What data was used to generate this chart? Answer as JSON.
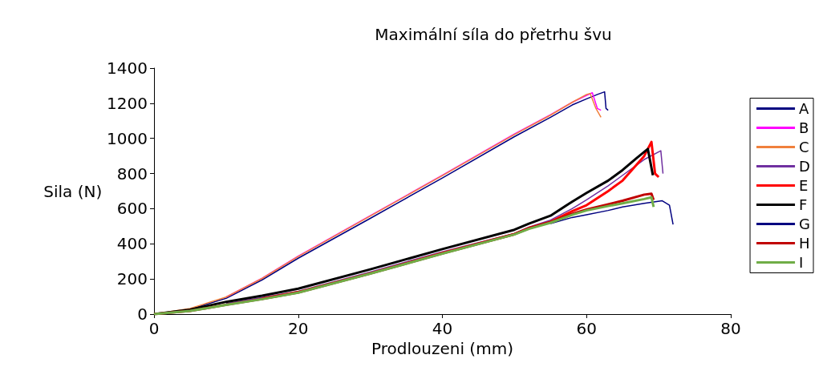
{
  "chart_data": {
    "type": "line",
    "title": "Maximální síla do přetrhu švu",
    "xlabel": "Prodlouzeni (mm)",
    "ylabel": "Sila (N)",
    "xlim": [
      0,
      80
    ],
    "xticks": [
      0,
      20,
      40,
      60,
      80
    ],
    "ylim": [
      0,
      1400
    ],
    "yticks": [
      0,
      200,
      400,
      600,
      800,
      1000,
      1200,
      1400
    ],
    "grid": false,
    "legend": "right",
    "marker": "none",
    "line_style": "solid",
    "series": [
      {
        "name": "A",
        "color": "#000080",
        "x": [
          0,
          5,
          10,
          15,
          20,
          30,
          40,
          50,
          55,
          58,
          60,
          61.5,
          62.5,
          62.7,
          63
        ],
        "values": [
          0,
          28,
          90,
          195,
          318,
          545,
          775,
          1010,
          1120,
          1190,
          1225,
          1250,
          1265,
          1170,
          1160
        ]
      },
      {
        "name": "B",
        "color": "#ff00ff",
        "x": [
          10,
          15,
          20,
          30,
          40,
          50,
          55,
          58,
          60,
          60.8,
          61.5,
          62
        ],
        "values": [
          97,
          205,
          330,
          560,
          790,
          1025,
          1135,
          1205,
          1245,
          1260,
          1170,
          1160
        ]
      },
      {
        "name": "C",
        "color": "#f0803c",
        "x": [
          0,
          5,
          10,
          15,
          20,
          30,
          40,
          50,
          55,
          58,
          60,
          60.5,
          61.3,
          62
        ],
        "values": [
          0,
          32,
          97,
          203,
          328,
          558,
          788,
          1022,
          1132,
          1205,
          1250,
          1255,
          1170,
          1120
        ]
      },
      {
        "name": "D",
        "color": "#7030a0",
        "x": [
          10,
          15,
          20,
          30,
          40,
          50,
          52,
          55,
          58,
          60,
          63,
          65,
          68,
          70.3,
          70.6
        ],
        "values": [
          60,
          95,
          130,
          240,
          355,
          460,
          495,
          535,
          600,
          650,
          730,
          790,
          880,
          930,
          800
        ]
      },
      {
        "name": "E",
        "color": "#ff0000",
        "x": [
          15,
          20,
          30,
          40,
          50,
          52,
          55,
          58,
          60,
          63,
          65,
          68,
          69,
          69.5,
          70
        ],
        "values": [
          88,
          125,
          232,
          348,
          455,
          490,
          525,
          585,
          620,
          700,
          760,
          900,
          980,
          800,
          780
        ]
      },
      {
        "name": "F",
        "color": "#000000",
        "x": [
          0,
          5,
          10,
          15,
          20,
          30,
          40,
          50,
          52,
          55,
          58,
          60,
          63,
          65,
          67,
          68.5,
          69.2
        ],
        "values": [
          0,
          25,
          70,
          105,
          145,
          255,
          370,
          480,
          515,
          560,
          640,
          690,
          760,
          820,
          890,
          940,
          790
        ]
      },
      {
        "name": "G",
        "color": "#000080",
        "x": [
          55,
          58,
          60,
          63,
          65,
          68,
          70.5,
          71.5,
          72
        ],
        "values": [
          515,
          550,
          565,
          590,
          610,
          630,
          645,
          620,
          510
        ]
      },
      {
        "name": "H",
        "color": "#c00000",
        "x": [
          0,
          5,
          10,
          15,
          20,
          30,
          40,
          50,
          52,
          55,
          58,
          60,
          63,
          65,
          68,
          69,
          69.3
        ],
        "values": [
          0,
          18,
          53,
          86,
          123,
          231,
          345,
          455,
          488,
          525,
          570,
          595,
          625,
          645,
          680,
          685,
          650
        ]
      },
      {
        "name": "I",
        "color": "#70ad47",
        "x": [
          0,
          5,
          10,
          15,
          20,
          30,
          40,
          50,
          52,
          55,
          58,
          60,
          63,
          65,
          68,
          69,
          69.3
        ],
        "values": [
          0,
          18,
          52,
          85,
          122,
          230,
          344,
          453,
          485,
          520,
          565,
          590,
          615,
          630,
          655,
          665,
          610
        ]
      }
    ]
  }
}
